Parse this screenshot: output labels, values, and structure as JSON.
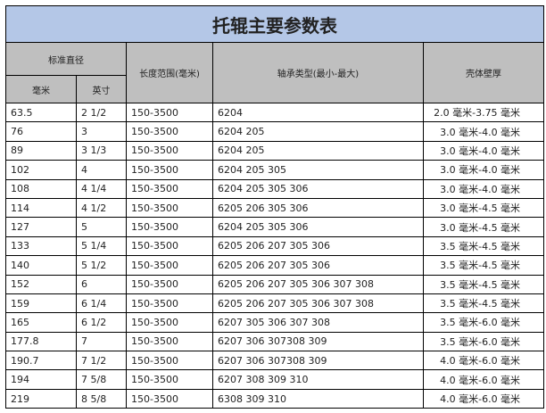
{
  "title": "托辊主要参数表",
  "headers": {
    "diameter": "标准直径",
    "mm": "毫米",
    "inch": "英寸",
    "length": "长度范围(毫米)",
    "bearing": "轴承类型(最小-最大)",
    "thickness": "壳体壁厚"
  },
  "rows": [
    [
      "63.5",
      "2 1/2",
      "150-3500",
      "6204",
      "2.0 毫米-3.75 毫米"
    ],
    [
      "76",
      "3",
      "150-3500",
      "6204 205",
      "3.0 毫米-4.0 毫米"
    ],
    [
      "89",
      "3 1/3",
      "150-3500",
      "6204 205",
      "3.0 毫米-4.0 毫米"
    ],
    [
      "102",
      "4",
      "150-3500",
      "6204 205 305",
      "3.0 毫米-4.0 毫米"
    ],
    [
      "108",
      "4 1/4",
      "150-3500",
      "6204 205 305 306",
      "3.0 毫米-4.0 毫米"
    ],
    [
      "114",
      "4 1/2",
      "150-3500",
      "6205 206 305 306",
      "3.0 毫米-4.5 毫米"
    ],
    [
      "127",
      "5",
      "150-3500",
      "6204 205 305 306",
      "3.0 毫米-4.5 毫米"
    ],
    [
      "133",
      "5 1/4",
      "150-3500",
      "6205 206 207 305 306",
      "3.5 毫米-4.5 毫米"
    ],
    [
      "140",
      "5 1/2",
      "150-3500",
      "6205 206 207 305 306",
      "3.5 毫米-4.5 毫米"
    ],
    [
      "152",
      "6",
      "150-3500",
      "6205 206 207 305 306 307 308",
      "3.5 毫米-4.5 毫米"
    ],
    [
      "159",
      "6 1/4",
      "150-3500",
      "6205 206 207 305 306 307 308",
      "3.5 毫米-4.5 毫米"
    ],
    [
      "165",
      "6 1/2",
      "150-3500",
      "6207 305 306 307 308",
      "3.5 毫米-6.0 毫米"
    ],
    [
      "177.8",
      "7",
      "150-3500",
      "6207 306 307308 309",
      "3.5 毫米-6.0 毫米"
    ],
    [
      "190.7",
      "7 1/2",
      "150-3500",
      "6207 306 307308 309",
      "4.0 毫米-6.0 毫米"
    ],
    [
      "194",
      "7 5/8",
      "150-3500",
      "6207 308 309 310",
      "4.0 毫米-6.0 毫米"
    ],
    [
      "219",
      "8 5/8",
      "150-3500",
      "6308 309 310",
      "4.0 毫米-6.0 毫米"
    ]
  ]
}
